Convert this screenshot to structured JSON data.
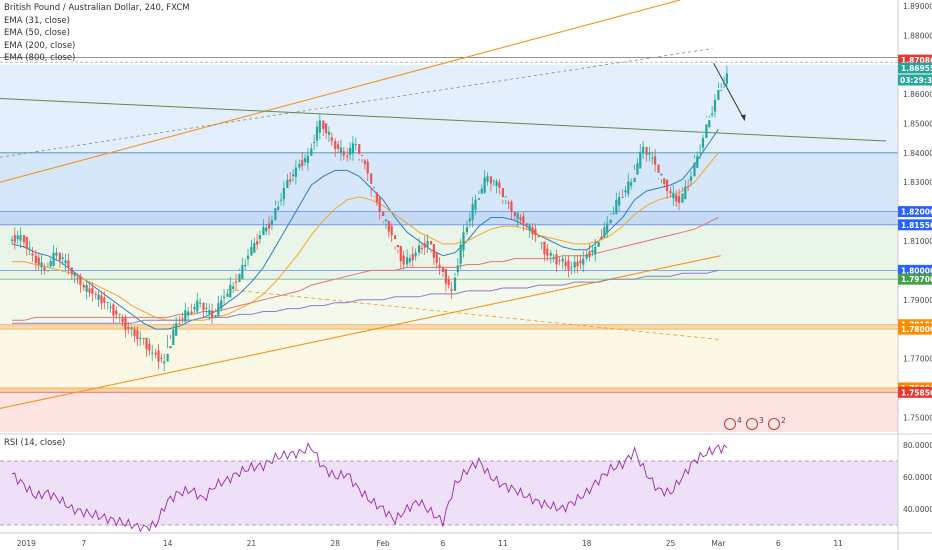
{
  "chart_title": "British Pound / Australian Dollar, 240, FXCM",
  "indicators": [
    "EMA (31, close)",
    "EMA (50, close)",
    "EMA (200, close)",
    "EMA (800, close)"
  ],
  "rsi_label": "RSI (14, close)",
  "timer": "03:29:34",
  "colors": {
    "bull": "#26a69a",
    "bear": "#ef5350",
    "ema31": "#2e7fbf",
    "ema50": "#f5a623",
    "ema200": "#e57373",
    "ema800": "#8e7cc3",
    "channel": "#f7931e",
    "trend": "#5b8c46",
    "rsi_line": "#9c27b0",
    "rsi_band": "#e9d8f5"
  },
  "chart_data": {
    "type": "candlestick",
    "title": "British Pound / Australian Dollar, 240, FXCM",
    "price_axis": {
      "ylim": [
        1.745,
        1.892
      ],
      "ticks": [
        1.89,
        1.88,
        1.87,
        1.86,
        1.85,
        1.84,
        1.83,
        1.82,
        1.81,
        1.8,
        1.79,
        1.78,
        1.77,
        1.76,
        1.75
      ],
      "tick_labels": [
        "1.89000",
        "1.88000",
        "1.87000",
        "1.86000",
        "1.85000",
        "1.84000",
        "1.83000",
        "1.82000",
        "1.81000",
        "1.80000",
        "1.79000",
        "1.78000",
        "1.77000",
        "1.76000",
        "1.75000"
      ]
    },
    "time_axis": {
      "tick_labels": [
        "2019",
        "7",
        "14",
        "21",
        "28",
        "Feb",
        "6",
        "11",
        "18",
        "25",
        "Mar",
        "6",
        "11"
      ],
      "tick_days": [
        1.4,
        7,
        14,
        21,
        28,
        32,
        37,
        42,
        49,
        56,
        60,
        65,
        70
      ]
    },
    "ohlc_daily": {
      "day": [
        1,
        2,
        3,
        4,
        5,
        6,
        7,
        8,
        9,
        10,
        11,
        12,
        13,
        14,
        15,
        16,
        17,
        18,
        19,
        20,
        21,
        22,
        23,
        24,
        25,
        26,
        27,
        28,
        29,
        30,
        31,
        32,
        33,
        34,
        35,
        36,
        37,
        38,
        39,
        40,
        41,
        42,
        43,
        44,
        45,
        46,
        47,
        48,
        49,
        50,
        51,
        52,
        53,
        54,
        55,
        56,
        57,
        58,
        59,
        60
      ],
      "close": [
        1.812,
        1.805,
        1.8,
        1.806,
        1.801,
        1.795,
        1.792,
        1.789,
        1.785,
        1.78,
        1.777,
        1.772,
        1.769,
        1.782,
        1.786,
        1.789,
        1.784,
        1.791,
        1.796,
        1.805,
        1.812,
        1.817,
        1.828,
        1.835,
        1.839,
        1.851,
        1.844,
        1.839,
        1.843,
        1.833,
        1.82,
        1.812,
        1.802,
        1.806,
        1.81,
        1.801,
        1.793,
        1.813,
        1.824,
        1.832,
        1.828,
        1.82,
        1.816,
        1.812,
        1.805,
        1.803,
        1.801,
        1.804,
        1.808,
        1.816,
        1.825,
        1.83,
        1.842,
        1.836,
        1.827,
        1.823,
        1.832,
        1.845,
        1.858,
        1.867
      ],
      "high": [
        1.817,
        1.81,
        1.807,
        1.811,
        1.806,
        1.799,
        1.796,
        1.793,
        1.789,
        1.785,
        1.781,
        1.777,
        1.775,
        1.788,
        1.791,
        1.793,
        1.789,
        1.796,
        1.803,
        1.81,
        1.817,
        1.822,
        1.833,
        1.842,
        1.85,
        1.853,
        1.849,
        1.845,
        1.848,
        1.838,
        1.825,
        1.816,
        1.807,
        1.811,
        1.815,
        1.806,
        1.799,
        1.818,
        1.828,
        1.835,
        1.831,
        1.824,
        1.82,
        1.816,
        1.809,
        1.807,
        1.805,
        1.808,
        1.812,
        1.82,
        1.83,
        1.836,
        1.846,
        1.842,
        1.831,
        1.829,
        1.838,
        1.851,
        1.862,
        1.871
      ],
      "low": [
        1.807,
        1.8,
        1.796,
        1.801,
        1.796,
        1.791,
        1.788,
        1.785,
        1.781,
        1.776,
        1.772,
        1.766,
        1.763,
        1.778,
        1.782,
        1.785,
        1.78,
        1.786,
        1.791,
        1.8,
        1.807,
        1.812,
        1.822,
        1.829,
        1.834,
        1.841,
        1.838,
        1.834,
        1.837,
        1.828,
        1.815,
        1.807,
        1.798,
        1.801,
        1.805,
        1.795,
        1.788,
        1.798,
        1.812,
        1.826,
        1.823,
        1.815,
        1.811,
        1.807,
        1.8,
        1.798,
        1.796,
        1.799,
        1.803,
        1.811,
        1.819,
        1.825,
        1.836,
        1.831,
        1.821,
        1.818,
        1.827,
        1.838,
        1.852,
        1.862
      ]
    },
    "ema_daily": {
      "ema31": [
        1.809,
        1.808,
        1.806,
        1.805,
        1.803,
        1.8,
        1.797,
        1.794,
        1.791,
        1.788,
        1.785,
        1.782,
        1.78,
        1.78,
        1.781,
        1.783,
        1.784,
        1.786,
        1.789,
        1.792,
        1.796,
        1.801,
        1.808,
        1.815,
        1.822,
        1.829,
        1.832,
        1.834,
        1.834,
        1.832,
        1.828,
        1.824,
        1.818,
        1.813,
        1.81,
        1.807,
        1.805,
        1.806,
        1.81,
        1.815,
        1.818,
        1.818,
        1.817,
        1.815,
        1.812,
        1.81,
        1.808,
        1.807,
        1.807,
        1.81,
        1.814,
        1.818,
        1.824,
        1.827,
        1.828,
        1.829,
        1.831,
        1.836,
        1.842,
        1.848
      ],
      "ema50": [
        1.803,
        1.803,
        1.802,
        1.801,
        1.8,
        1.799,
        1.797,
        1.795,
        1.793,
        1.791,
        1.788,
        1.786,
        1.784,
        1.783,
        1.783,
        1.783,
        1.783,
        1.784,
        1.785,
        1.787,
        1.789,
        1.792,
        1.796,
        1.801,
        1.806,
        1.812,
        1.817,
        1.821,
        1.824,
        1.825,
        1.824,
        1.822,
        1.819,
        1.816,
        1.813,
        1.811,
        1.809,
        1.809,
        1.81,
        1.812,
        1.814,
        1.815,
        1.815,
        1.814,
        1.812,
        1.811,
        1.81,
        1.809,
        1.809,
        1.81,
        1.812,
        1.815,
        1.819,
        1.822,
        1.824,
        1.825,
        1.827,
        1.83,
        1.835,
        1.84
      ],
      "ema200": [
        1.783,
        1.783,
        1.784,
        1.784,
        1.784,
        1.784,
        1.784,
        1.784,
        1.784,
        1.784,
        1.784,
        1.784,
        1.784,
        1.784,
        1.785,
        1.785,
        1.786,
        1.786,
        1.787,
        1.788,
        1.789,
        1.79,
        1.791,
        1.792,
        1.793,
        1.795,
        1.796,
        1.797,
        1.798,
        1.799,
        1.8,
        1.8,
        1.8,
        1.801,
        1.801,
        1.801,
        1.801,
        1.801,
        1.802,
        1.802,
        1.803,
        1.803,
        1.804,
        1.804,
        1.804,
        1.804,
        1.805,
        1.805,
        1.805,
        1.806,
        1.807,
        1.808,
        1.809,
        1.81,
        1.811,
        1.812,
        1.813,
        1.814,
        1.816,
        1.818
      ],
      "ema800": [
        1.782,
        1.782,
        1.782,
        1.782,
        1.782,
        1.782,
        1.782,
        1.782,
        1.782,
        1.782,
        1.782,
        1.783,
        1.783,
        1.783,
        1.783,
        1.783,
        1.784,
        1.784,
        1.784,
        1.785,
        1.785,
        1.786,
        1.786,
        1.787,
        1.787,
        1.788,
        1.788,
        1.789,
        1.789,
        1.79,
        1.79,
        1.79,
        1.791,
        1.791,
        1.791,
        1.792,
        1.792,
        1.792,
        1.793,
        1.793,
        1.793,
        1.794,
        1.794,
        1.794,
        1.795,
        1.795,
        1.795,
        1.796,
        1.796,
        1.796,
        1.797,
        1.797,
        1.797,
        1.798,
        1.798,
        1.798,
        1.799,
        1.799,
        1.799,
        1.8
      ]
    },
    "rsi": {
      "ylim": [
        25,
        85
      ],
      "ticks": [
        80,
        60,
        40
      ],
      "tick_labels": [
        "80.0000",
        "60.0000",
        "40.0000"
      ],
      "band": [
        30,
        70
      ],
      "values": [
        62,
        55,
        48,
        50,
        46,
        40,
        38,
        36,
        34,
        32,
        30,
        28,
        30,
        45,
        50,
        52,
        46,
        55,
        58,
        63,
        66,
        67,
        72,
        74,
        75,
        79,
        66,
        60,
        62,
        52,
        45,
        40,
        33,
        40,
        45,
        38,
        32,
        55,
        64,
        70,
        60,
        55,
        52,
        48,
        44,
        42,
        40,
        45,
        50,
        58,
        65,
        68,
        76,
        62,
        52,
        50,
        60,
        70,
        75,
        78
      ]
    },
    "levels": [
      {
        "price": 1.82,
        "label": "1.82000",
        "color": "#2962ff"
      },
      {
        "price": 1.8155,
        "label": "1.81550",
        "color": "#2962ff"
      },
      {
        "price": 1.8,
        "label": "1.80000",
        "color": "#2962ff"
      },
      {
        "price": 1.797,
        "label": "1.79700",
        "color": "#43a047"
      },
      {
        "price": 1.7815,
        "label": "1.78150",
        "color": "#fb8c00"
      },
      {
        "price": 1.78,
        "label": "1.78000",
        "color": "#fb8c00"
      },
      {
        "price": 1.76,
        "label": "1.76000",
        "color": "#fb8c00"
      },
      {
        "price": 1.7585,
        "label": "1.75850",
        "color": "#e53935"
      }
    ],
    "last_price": {
      "price": 1.86955,
      "label": "1.86955",
      "color": "#26a69a"
    },
    "high_marker": {
      "price": 1.87086,
      "label": "1.87086",
      "color": "#e53935"
    },
    "zones": [
      {
        "from": 1.87,
        "to": 1.84,
        "color": "#e3effc"
      },
      {
        "from": 1.84,
        "to": 1.82,
        "color": "#d6e7fa"
      },
      {
        "from": 1.82,
        "to": 1.8155,
        "color": "#c5daf3"
      },
      {
        "from": 1.8155,
        "to": 1.797,
        "color": "#eaf5ea"
      },
      {
        "from": 1.797,
        "to": 1.7815,
        "color": "#f3f9ec"
      },
      {
        "from": 1.7815,
        "to": 1.78,
        "color": "#f3d9b8"
      },
      {
        "from": 1.78,
        "to": 1.76,
        "color": "#fbf8e6"
      },
      {
        "from": 1.76,
        "to": 1.7585,
        "color": "#f6d3a8"
      },
      {
        "from": 1.7585,
        "to": 1.745,
        "color": "#fbe4e2"
      }
    ],
    "event_icons": [
      "4",
      "3",
      "2"
    ]
  }
}
